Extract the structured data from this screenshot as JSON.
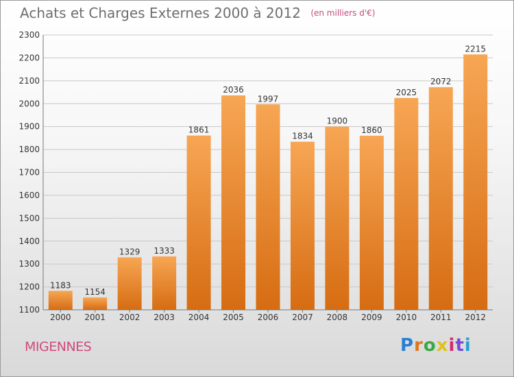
{
  "chart_title": "Achats et Charges Externes 2000 à 2012",
  "chart_unit": "(en milliers d'€)",
  "commune_name": "MIGENNES",
  "logo_text": "Proxiti",
  "logo_colors": [
    "#2a7fd4",
    "#e0761c",
    "#3aa845",
    "#e0c21c",
    "#d42a6e",
    "#7a4ad4",
    "#2a9fd4"
  ],
  "colors": {
    "bar_top": "#f7a654",
    "bar_bottom": "#d66c12",
    "grid": "#c8c8c8",
    "axis_text": "#333333",
    "title": "#6e6e6e",
    "commune": "#d04a7c"
  },
  "chart_data": {
    "type": "bar",
    "title": "Achats et Charges Externes 2000 à 2012",
    "categories": [
      "2000",
      "2001",
      "2002",
      "2003",
      "2004",
      "2005",
      "2006",
      "2007",
      "2008",
      "2009",
      "2010",
      "2011",
      "2012"
    ],
    "values": [
      1183,
      1154,
      1329,
      1333,
      1861,
      2036,
      1997,
      1834,
      1900,
      1860,
      2025,
      2072,
      2215
    ],
    "ylim": [
      1100,
      2300
    ],
    "yticks": [
      1100,
      1200,
      1300,
      1400,
      1500,
      1600,
      1700,
      1800,
      1900,
      2000,
      2100,
      2200,
      2300
    ],
    "grid": true,
    "data_labels": true
  }
}
